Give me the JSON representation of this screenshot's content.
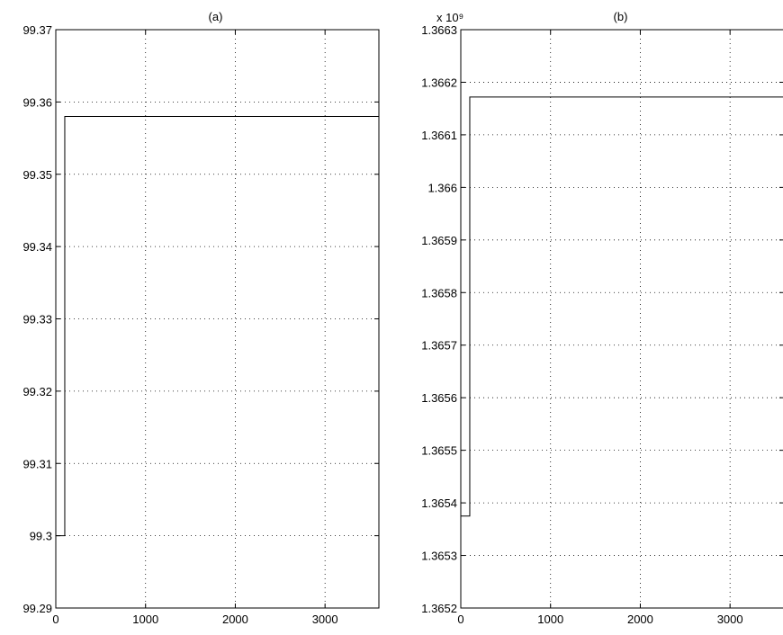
{
  "chart_data": [
    {
      "type": "line",
      "title": "(a)",
      "xlabel": "",
      "ylabel": "",
      "xlim": [
        0,
        3600
      ],
      "ylim": [
        99.29,
        99.37
      ],
      "grid": true,
      "xticks": [
        0,
        1000,
        2000,
        3000
      ],
      "xtick_labels": [
        "0",
        "1000",
        "2000",
        "3000"
      ],
      "yticks": [
        99.29,
        99.3,
        99.31,
        99.32,
        99.33,
        99.34,
        99.35,
        99.36,
        99.37
      ],
      "ytick_labels": [
        "99.29",
        "99.3",
        "99.31",
        "99.32",
        "99.33",
        "99.34",
        "99.35",
        "99.36",
        "99.37"
      ],
      "exponent_label": "",
      "series": [
        {
          "x": [
            0,
            100,
            100,
            3600
          ],
          "y": [
            99.3,
            99.3,
            99.358,
            99.358
          ]
        }
      ]
    },
    {
      "type": "line",
      "title": "(b)",
      "xlabel": "",
      "ylabel": "",
      "xlim": [
        0,
        3600
      ],
      "ylim": [
        1.3652,
        1.3663
      ],
      "grid": true,
      "xticks": [
        0,
        1000,
        2000,
        3000
      ],
      "xtick_labels": [
        "0",
        "1000",
        "2000",
        "3000"
      ],
      "yticks": [
        1.3652,
        1.3653,
        1.3654,
        1.3655,
        1.3656,
        1.3657,
        1.3658,
        1.3659,
        1.366,
        1.3661,
        1.3662,
        1.3663
      ],
      "ytick_labels": [
        "1.3652",
        "1.3653",
        "1.3654",
        "1.3655",
        "1.3656",
        "1.3657",
        "1.3658",
        "1.3659",
        "1.366",
        "1.3661",
        "1.3662",
        "1.3663"
      ],
      "exponent_label": "x 10⁹",
      "series": [
        {
          "x": [
            0,
            100,
            100,
            3600
          ],
          "y": [
            1.365375,
            1.365375,
            1.366172,
            1.366172
          ]
        }
      ]
    }
  ]
}
